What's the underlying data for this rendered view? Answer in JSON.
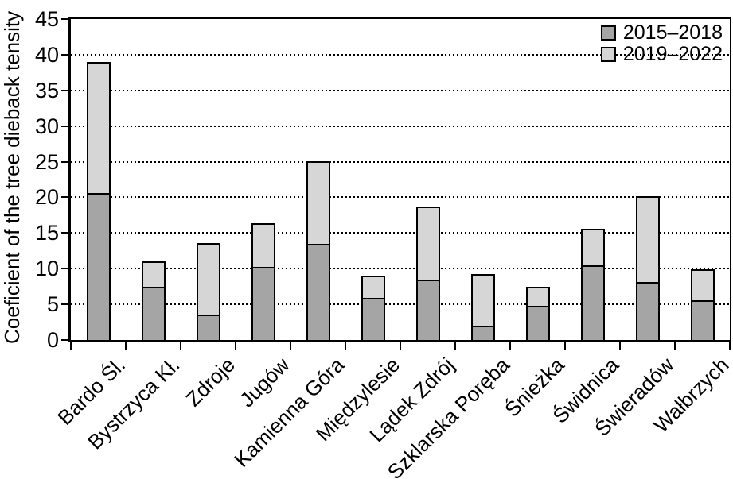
{
  "chart_data": {
    "type": "bar",
    "stacked": true,
    "title": "",
    "xlabel": "",
    "ylabel": "Coeficient of the tree dieback tensity",
    "ylim": [
      0,
      45
    ],
    "yticks": [
      0,
      5,
      10,
      15,
      20,
      25,
      30,
      35,
      40,
      45
    ],
    "grid": "horizontal-dotted",
    "legend_position": "top-right",
    "categories": [
      "Bardo Śl.",
      "Bystrzyca Kł.",
      "Zdroje",
      "Jugów",
      "Kamienna Góra",
      "Międzylesie",
      "Lądek Zdrój",
      "Szklarska Poręba",
      "Śnieżka",
      "Świdnica",
      "Świeradów",
      "Wałbrzych"
    ],
    "series": [
      {
        "name": "2015–2018",
        "color": "#a5a5a5",
        "values": [
          20.4,
          7.2,
          3.3,
          10.0,
          13.2,
          5.7,
          8.2,
          1.8,
          4.6,
          10.3,
          7.9,
          5.4
        ]
      },
      {
        "name": "2019–2022",
        "color": "#d6d6d6",
        "values": [
          18.6,
          3.8,
          10.2,
          6.3,
          11.8,
          3.3,
          10.5,
          7.5,
          2.9,
          5.4,
          12.2,
          4.6
        ]
      }
    ],
    "totals": [
      39.0,
      11.0,
      13.5,
      16.3,
      25.0,
      9.0,
      18.7,
      9.3,
      7.5,
      15.7,
      20.1,
      10.0
    ]
  },
  "colors": {
    "axis": "#000000",
    "background": "#ffffff",
    "series_2015_2018": "#a5a5a5",
    "series_2019_2022": "#d6d6d6"
  }
}
